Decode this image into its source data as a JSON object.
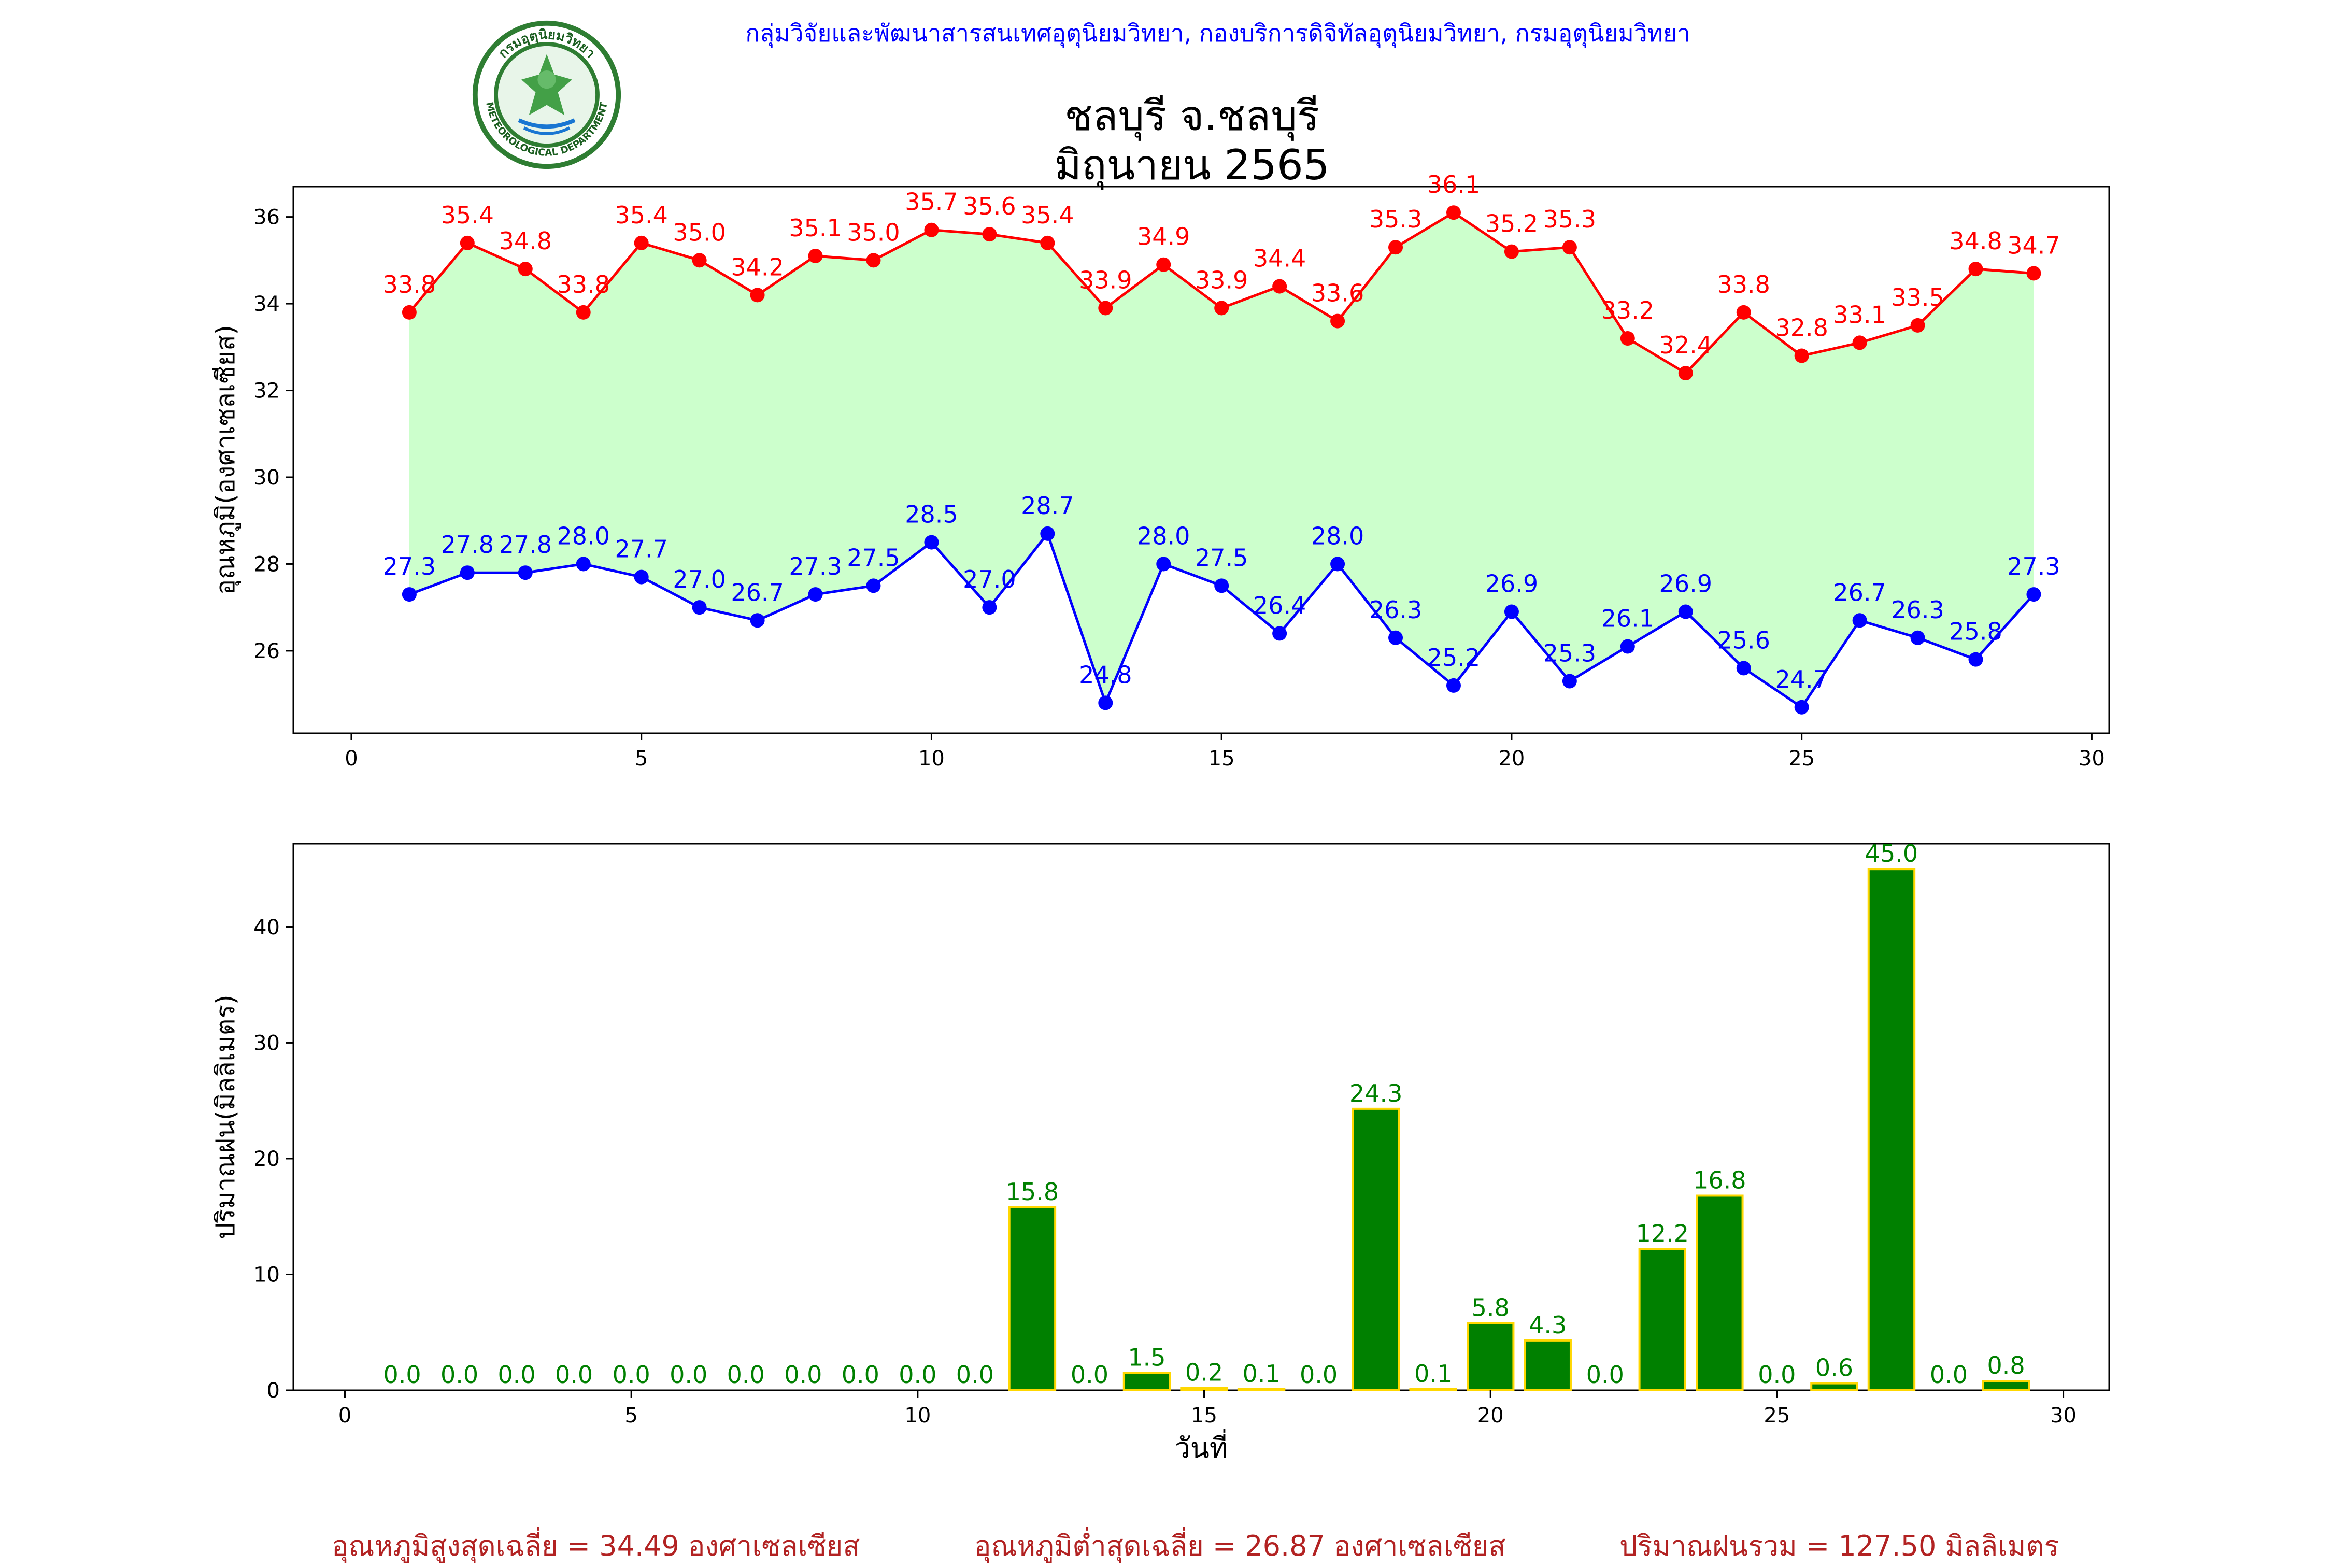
{
  "header": {
    "credit": "กลุ่มวิจัยและพัฒนาสารสนเทศอุตุนิยมวิทยา, กองบริการดิจิทัลอุตุนิยมวิทยา, กรมอุตุนิยมวิทยา",
    "title_line1": "ชลบุรี จ.ชลบุรี",
    "title_line2": "มิถุนายน 2565",
    "logo_text_top": "กรมอุตุนิยมวิทยา",
    "logo_text_bottom": "METEOROLOGICAL DEPARTMENT"
  },
  "summary": {
    "max_avg": "อุณหภูมิสูงสุดเฉลี่ย = 34.49 องศาเซลเซียส",
    "min_avg": "อุณหภูมิต่ำสุดเฉลี่ย = 26.87 องศาเซลเซียส",
    "rain_total": "ปริมาณฝนรวม = 127.50 มิลลิเมตร"
  },
  "colors": {
    "max_line": "#ff0000",
    "min_line": "#0000ff",
    "fill": "#ccffcc",
    "bar": "#008000",
    "bar_edge": "#ffd700",
    "bar_label": "#008000"
  },
  "chart_data": [
    {
      "type": "line",
      "ylabel": "อุณหภูมิ(องศาเซลเซียส)",
      "xlim": [
        -1,
        30.3
      ],
      "ylim": [
        24.1,
        36.7
      ],
      "xticks": [
        0,
        5,
        10,
        15,
        20,
        25,
        30
      ],
      "yticks": [
        26,
        28,
        30,
        32,
        34,
        36
      ],
      "fill_between": true,
      "x": [
        1,
        2,
        3,
        4,
        5,
        6,
        7,
        8,
        9,
        10,
        11,
        12,
        13,
        14,
        15,
        16,
        17,
        18,
        19,
        20,
        21,
        22,
        23,
        24,
        25,
        26,
        27,
        28,
        29
      ],
      "series": [
        {
          "values": [
            33.8,
            35.4,
            34.8,
            33.8,
            35.4,
            35.0,
            34.2,
            35.1,
            35.0,
            35.7,
            35.6,
            35.4,
            33.9,
            34.9,
            33.9,
            34.4,
            33.6,
            35.3,
            36.1,
            35.2,
            35.3,
            33.2,
            32.4,
            33.8,
            32.8,
            33.1,
            33.5,
            34.8,
            34.7
          ],
          "labels": [
            "33.8",
            "35.4",
            "34.8",
            "33.8",
            "35.4",
            "35.0",
            "34.2",
            "35.1",
            "35.0",
            "35.7",
            "35.6",
            "35.4",
            "33.9",
            "34.9",
            "33.9",
            "34.4",
            "33.6",
            "35.3",
            "36.1",
            "35.2",
            "35.3",
            "33.2",
            "32.4",
            "33.8",
            "32.8",
            "33.1",
            "33.5",
            "34.8",
            "34.7"
          ]
        },
        {
          "values": [
            27.3,
            27.8,
            27.8,
            28.0,
            27.7,
            27.0,
            26.7,
            27.3,
            27.5,
            28.5,
            27.0,
            28.7,
            24.8,
            28.0,
            27.5,
            26.4,
            28.0,
            26.3,
            25.2,
            26.9,
            25.3,
            26.1,
            26.9,
            25.6,
            24.7,
            26.7,
            26.3,
            25.8,
            27.3
          ],
          "labels": [
            "27.3",
            "27.8",
            "27.8",
            "28.0",
            "27.7",
            "27.0",
            "26.7",
            "27.3",
            "27.5",
            "28.5",
            "27.0",
            "28.7",
            "24.8",
            "28.0",
            "27.5",
            "26.4",
            "28.0",
            "26.3",
            "25.2",
            "26.9",
            "25.3",
            "26.1",
            "26.9",
            "25.6",
            "24.7",
            "26.7",
            "26.3",
            "25.8",
            "27.3"
          ]
        }
      ]
    },
    {
      "type": "bar",
      "xlabel": "วันที่",
      "ylabel": "ปริมาณฝน(มิลลิเมตร)",
      "xlim": [
        -0.9,
        30.8
      ],
      "ylim": [
        0,
        47.2
      ],
      "xticks": [
        0,
        5,
        10,
        15,
        20,
        25,
        30
      ],
      "yticks": [
        0,
        10,
        20,
        30,
        40
      ],
      "x": [
        1,
        2,
        3,
        4,
        5,
        6,
        7,
        8,
        9,
        10,
        11,
        12,
        13,
        14,
        15,
        16,
        17,
        18,
        19,
        20,
        21,
        22,
        23,
        24,
        25,
        26,
        27,
        28,
        29
      ],
      "values": [
        0,
        0,
        0,
        0,
        0,
        0,
        0,
        0,
        0,
        0,
        0,
        15.8,
        0,
        1.5,
        0.2,
        0.1,
        0,
        24.3,
        0.1,
        5.8,
        4.3,
        0,
        12.2,
        16.8,
        0,
        0.6,
        45.0,
        0,
        0.8
      ],
      "labels": [
        "0.0",
        "0.0",
        "0.0",
        "0.0",
        "0.0",
        "0.0",
        "0.0",
        "0.0",
        "0.0",
        "0.0",
        "0.0",
        "15.8",
        "0.0",
        "1.5",
        "0.2",
        "0.1",
        "0.0",
        "24.3",
        "0.1",
        "5.8",
        "4.3",
        "0.0",
        "12.2",
        "16.8",
        "0.0",
        "0.6",
        "45.0",
        "0.0",
        "0.8"
      ]
    }
  ]
}
